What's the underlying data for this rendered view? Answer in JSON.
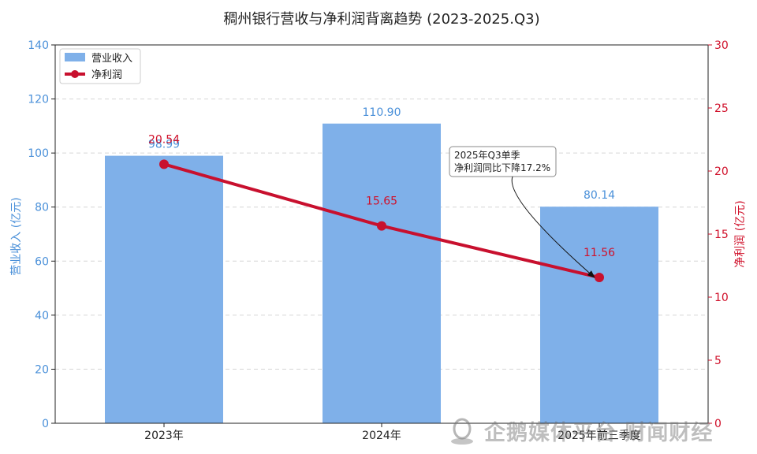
{
  "chart_data": {
    "type": "bar+line",
    "title": "稠州银行营收与净利润背离趋势 (2023-2025.Q3)",
    "categories": [
      "2023年",
      "2024年",
      "2025年前三季度"
    ],
    "series": [
      {
        "name": "营业收入",
        "type": "bar",
        "axis": "left",
        "values": [
          98.99,
          110.9,
          80.14
        ],
        "labels": [
          "98.99",
          "110.90",
          "80.14"
        ],
        "color": "#7fb0e9"
      },
      {
        "name": "净利润",
        "type": "line",
        "axis": "right",
        "values": [
          20.54,
          15.65,
          11.56
        ],
        "labels": [
          "20.54",
          "15.65",
          "11.56"
        ],
        "color": "#c8102e"
      }
    ],
    "y_left": {
      "label": "营业收入 (亿元)",
      "range": [
        0,
        140
      ],
      "ticks": [
        "0",
        "20",
        "40",
        "60",
        "80",
        "100",
        "120",
        "140"
      ],
      "color": "#4a90d9"
    },
    "y_right": {
      "label": "净利润 (亿元)",
      "range": [
        0,
        30
      ],
      "ticks": [
        "0",
        "5",
        "10",
        "15",
        "20",
        "25",
        "30"
      ],
      "color": "#d0102a"
    },
    "grid": true,
    "legend_position": "top-left",
    "annotation": {
      "lines": [
        "2025年Q3单季",
        "净利润同比下降17.2%"
      ],
      "target_category": "2025年前三季度",
      "target_series": "净利润"
    }
  },
  "watermark": {
    "text": "企鹅媒体平台 财闻财经",
    "logo_icon": "penguin-logo-icon"
  }
}
